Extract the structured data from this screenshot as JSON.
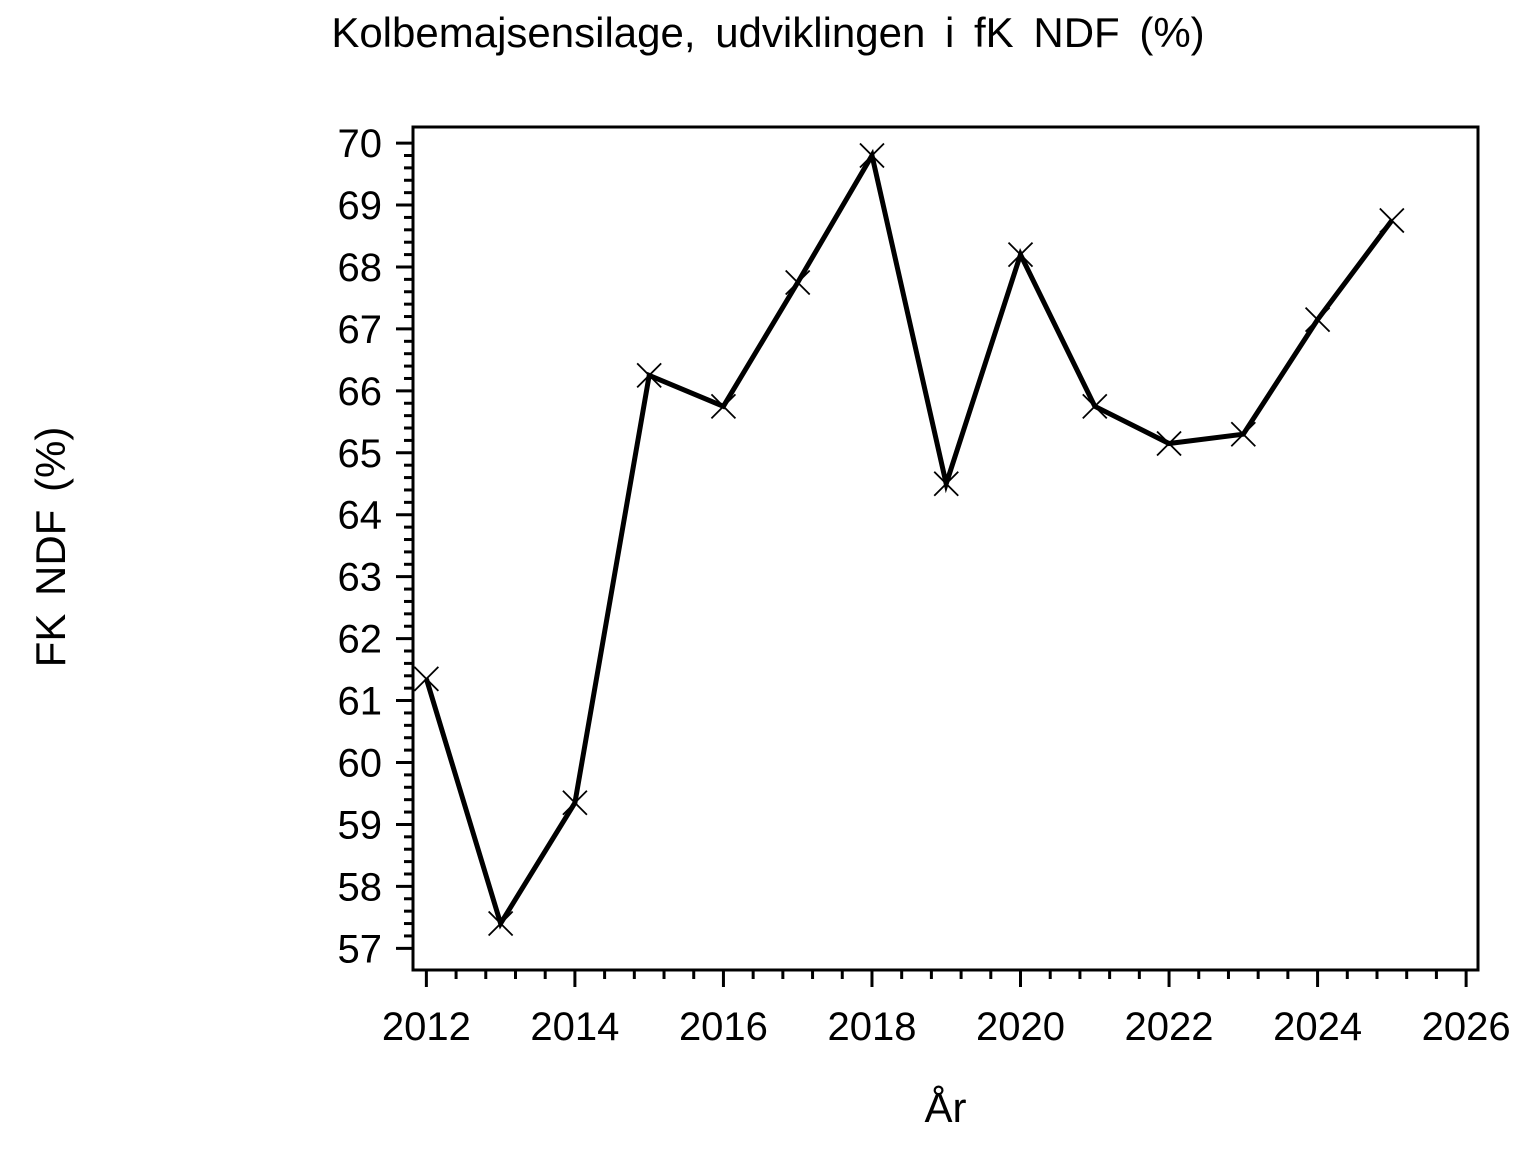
{
  "page": {
    "background_color": "#FFFFFF",
    "foreground_color": "#000000"
  },
  "chart_data": {
    "type": "line",
    "title": "Kolbemajsensilage, udviklingen i fK NDF (%)",
    "xlabel": "År",
    "ylabel": "FK NDF (%)",
    "x": [
      2012,
      2013,
      2014,
      2015,
      2016,
      2017,
      2018,
      2019,
      2020,
      2021,
      2022,
      2023,
      2024,
      2025
    ],
    "y": [
      61.35,
      57.4,
      59.35,
      66.25,
      65.75,
      67.75,
      69.8,
      64.5,
      68.2,
      65.75,
      65.15,
      65.3,
      67.15,
      68.75
    ],
    "line_color": "#000000",
    "marker": "x-cross",
    "marker_color": "#000000",
    "grid": false,
    "legend": false,
    "frame": true,
    "xlim": [
      2011.82,
      2026.16
    ],
    "ylim": [
      56.65,
      70.26
    ],
    "x_ticks": {
      "major": [
        2012,
        2014,
        2016,
        2018,
        2020,
        2022,
        2024,
        2026
      ],
      "minor_start": 2012,
      "minor_step": 0.4,
      "minor_end": 2026
    },
    "y_ticks": {
      "major": [
        57,
        58,
        59,
        60,
        61,
        62,
        63,
        64,
        65,
        66,
        67,
        68,
        69,
        70
      ],
      "minor_start": 57,
      "minor_step": 0.2,
      "minor_end": 70
    }
  }
}
